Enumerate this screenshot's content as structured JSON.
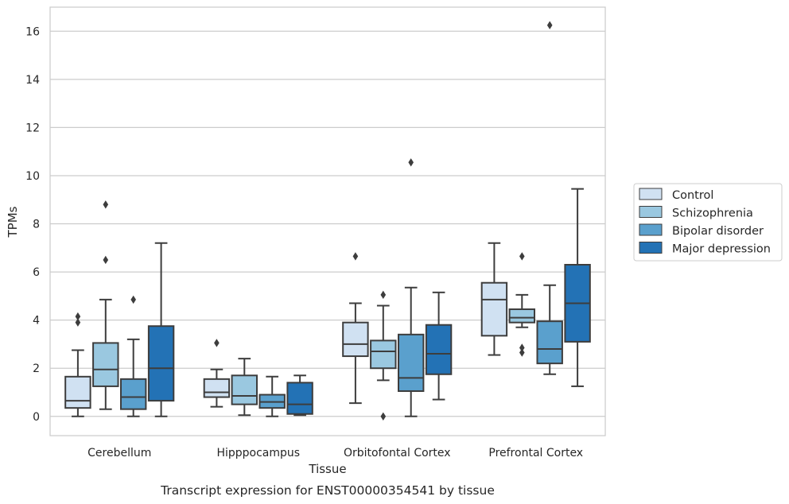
{
  "chart_data": {
    "type": "box",
    "title": "",
    "caption": "Transcript expression for ENST00000354541 by tissue",
    "xlabel": "Tissue",
    "ylabel": "TPMs",
    "ylim": [
      -0.8,
      17.0
    ],
    "yticks": [
      0,
      2,
      4,
      6,
      8,
      10,
      12,
      14,
      16
    ],
    "grid": true,
    "legend_position": "right-outside",
    "categories": [
      "Cerebellum",
      "Hipppocampus",
      "Orbitofontal Cortex",
      "Prefrontal Cortex"
    ],
    "series": [
      {
        "name": "Control",
        "color": "#d0e1f2",
        "boxes": [
          {
            "whisker_low": 0.0,
            "q1": 0.35,
            "median": 0.65,
            "q3": 1.65,
            "whisker_high": 2.75,
            "outliers": [
              3.9,
              4.15
            ]
          },
          {
            "whisker_low": 0.4,
            "q1": 0.8,
            "median": 1.0,
            "q3": 1.55,
            "whisker_high": 1.95,
            "outliers": [
              3.05
            ]
          },
          {
            "whisker_low": 0.55,
            "q1": 2.5,
            "median": 3.0,
            "q3": 3.9,
            "whisker_high": 4.7,
            "outliers": [
              6.65
            ]
          },
          {
            "whisker_low": 2.55,
            "q1": 3.35,
            "median": 4.85,
            "q3": 5.55,
            "whisker_high": 7.2,
            "outliers": []
          }
        ]
      },
      {
        "name": "Schizophrenia",
        "color": "#9ac8e0",
        "boxes": [
          {
            "whisker_low": 0.3,
            "q1": 1.25,
            "median": 1.95,
            "q3": 3.05,
            "whisker_high": 4.85,
            "outliers": [
              6.5,
              8.8
            ]
          },
          {
            "whisker_low": 0.05,
            "q1": 0.5,
            "median": 0.85,
            "q3": 1.7,
            "whisker_high": 2.4,
            "outliers": []
          },
          {
            "whisker_low": 1.5,
            "q1": 2.0,
            "median": 2.7,
            "q3": 3.15,
            "whisker_high": 4.6,
            "outliers": [
              0.0,
              5.05
            ]
          },
          {
            "whisker_low": 3.7,
            "q1": 3.9,
            "median": 4.1,
            "q3": 4.45,
            "whisker_high": 5.05,
            "outliers": [
              6.65,
              2.65,
              2.85
            ]
          }
        ]
      },
      {
        "name": "Bipolar disorder",
        "color": "#5aa0cd",
        "boxes": [
          {
            "whisker_low": 0.0,
            "q1": 0.3,
            "median": 0.8,
            "q3": 1.55,
            "whisker_high": 3.2,
            "outliers": [
              4.85
            ]
          },
          {
            "whisker_low": 0.0,
            "q1": 0.35,
            "median": 0.6,
            "q3": 0.9,
            "whisker_high": 1.65,
            "outliers": []
          },
          {
            "whisker_low": 0.0,
            "q1": 1.05,
            "median": 1.6,
            "q3": 3.4,
            "whisker_high": 5.35,
            "outliers": [
              10.55
            ]
          },
          {
            "whisker_low": 1.75,
            "q1": 2.2,
            "median": 2.8,
            "q3": 3.95,
            "whisker_high": 5.45,
            "outliers": [
              16.25
            ]
          }
        ]
      },
      {
        "name": "Major depression",
        "color": "#2372b5",
        "boxes": [
          {
            "whisker_low": 0.0,
            "q1": 0.65,
            "median": 2.0,
            "q3": 3.75,
            "whisker_high": 7.2,
            "outliers": []
          },
          {
            "whisker_low": 0.05,
            "q1": 0.1,
            "median": 0.5,
            "q3": 1.4,
            "whisker_high": 1.7,
            "outliers": []
          },
          {
            "whisker_low": 0.7,
            "q1": 1.75,
            "median": 2.6,
            "q3": 3.8,
            "whisker_high": 5.15,
            "outliers": []
          },
          {
            "whisker_low": 1.25,
            "q1": 3.1,
            "median": 4.7,
            "q3": 6.3,
            "whisker_high": 9.45,
            "outliers": []
          }
        ]
      }
    ]
  }
}
